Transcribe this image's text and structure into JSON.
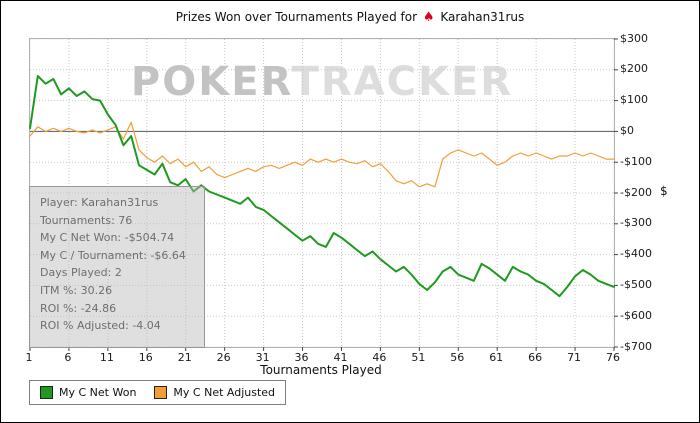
{
  "title": {
    "prefix": "Prizes Won over Tournaments Played for",
    "player": "Karahan31rus"
  },
  "watermark": {
    "part1": "POKER",
    "part2": "TRACKER"
  },
  "stats_box": {
    "lines": [
      "Player: Karahan31rus",
      "Tournaments: 76",
      "My C Net Won: -$504.74",
      "My C / Tournament: -$6.64",
      "Days Played: 2",
      "ITM %: 30.26",
      "ROI %: -24.86",
      "ROI % Adjusted: -4.04"
    ]
  },
  "legend": [
    {
      "label": "My C Net Won",
      "color": "#1f9a1f"
    },
    {
      "label": "My C Net Adjusted",
      "color": "#f29d38"
    }
  ],
  "chart_data": {
    "type": "line",
    "title": "Prizes Won over Tournaments Played for Karahan31rus",
    "xlabel": "Tournaments Played",
    "ylabel": "$",
    "xlim": [
      1,
      76
    ],
    "ylim": [
      -700,
      300
    ],
    "x_ticks": [
      1,
      6,
      11,
      16,
      21,
      26,
      31,
      36,
      41,
      46,
      51,
      56,
      61,
      66,
      71,
      76
    ],
    "y_ticks": [
      300,
      200,
      100,
      0,
      -100,
      -200,
      -300,
      -400,
      -500,
      -600,
      -700
    ],
    "grid": true,
    "legend_position": "bottom-left",
    "series": [
      {
        "name": "My C Net Won",
        "color": "#1f9a1f",
        "width": 2,
        "values": [
          10,
          180,
          155,
          170,
          120,
          140,
          115,
          130,
          105,
          100,
          55,
          20,
          -45,
          -15,
          -110,
          -125,
          -140,
          -105,
          -165,
          -175,
          -155,
          -195,
          -175,
          -195,
          -205,
          -215,
          -225,
          -235,
          -215,
          -245,
          -255,
          -275,
          -295,
          -315,
          -335,
          -355,
          -340,
          -365,
          -375,
          -330,
          -345,
          -365,
          -385,
          -405,
          -390,
          -415,
          -435,
          -455,
          -440,
          -465,
          -495,
          -515,
          -490,
          -455,
          -440,
          -465,
          -475,
          -485,
          -430,
          -445,
          -465,
          -485,
          -440,
          -455,
          -465,
          -485,
          -495,
          -515,
          -535,
          -505,
          -470,
          -450,
          -465,
          -485,
          -495,
          -504.74
        ]
      },
      {
        "name": "My C Net Adjusted",
        "color": "#f29d38",
        "width": 1.2,
        "values": [
          -15,
          15,
          0,
          10,
          0,
          10,
          0,
          -5,
          5,
          -5,
          5,
          15,
          -25,
          30,
          -60,
          -85,
          -100,
          -80,
          -105,
          -90,
          -115,
          -100,
          -130,
          -115,
          -140,
          -150,
          -140,
          -130,
          -120,
          -130,
          -115,
          -110,
          -120,
          -110,
          -100,
          -110,
          -90,
          -100,
          -90,
          -100,
          -90,
          -100,
          -105,
          -95,
          -115,
          -105,
          -130,
          -160,
          -170,
          -160,
          -180,
          -170,
          -180,
          -90,
          -70,
          -60,
          -70,
          -80,
          -70,
          -90,
          -110,
          -100,
          -80,
          -70,
          -80,
          -70,
          -80,
          -90,
          -80,
          -80,
          -70,
          -80,
          -70,
          -80,
          -90,
          -90
        ]
      }
    ]
  }
}
